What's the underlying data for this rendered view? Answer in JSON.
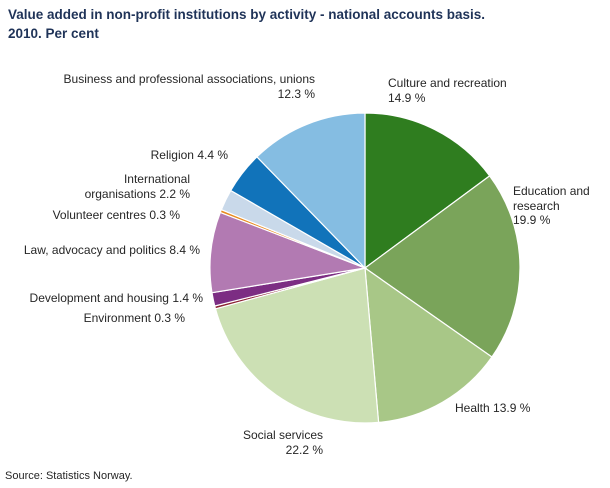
{
  "title": {
    "line1": "Value added in non-profit institutions by activity - national accounts basis.",
    "line2": "2010. Per cent"
  },
  "source": "Source: Statistics Norway.",
  "chart_data": {
    "type": "pie",
    "title": "Value added in non-profit institutions by activity - national accounts basis. 2010. Per cent",
    "unit": "per cent",
    "start_angle_deg": 0,
    "direction": "clockwise",
    "legend": "none",
    "slices": [
      {
        "label": "Culture and recreation",
        "value": 14.9,
        "pct": "14.9 %",
        "color": "#2f7d1f"
      },
      {
        "label": "Education and research",
        "value": 19.9,
        "pct": "19.9 %",
        "color": "#7aa45a"
      },
      {
        "label": "Health",
        "value": 13.9,
        "pct": "13.9 %",
        "color": "#a8c787"
      },
      {
        "label": "Social services",
        "value": 22.2,
        "pct": "22.2 %",
        "color": "#cce0b4"
      },
      {
        "label": "Environment",
        "value": 0.3,
        "pct": "0.3 %",
        "color": "#8b2333"
      },
      {
        "label": "Development and housing",
        "value": 1.4,
        "pct": "1.4 %",
        "color": "#7c2d83"
      },
      {
        "label": "Law, advocacy and politics",
        "value": 8.4,
        "pct": "8.4 %",
        "color": "#b27ab2"
      },
      {
        "label": "Volunteer centres",
        "value": 0.3,
        "pct": "0.3 %",
        "color": "#e88b20"
      },
      {
        "label": "International organisations",
        "value": 2.2,
        "pct": "2.2 %",
        "color": "#c9d9ea"
      },
      {
        "label": "Religion",
        "value": 4.4,
        "pct": "4.4 %",
        "color": "#1173ba"
      },
      {
        "label": "Business and professional associations, unions",
        "value": 12.3,
        "pct": "12.3 %",
        "color": "#85bde2"
      }
    ]
  }
}
